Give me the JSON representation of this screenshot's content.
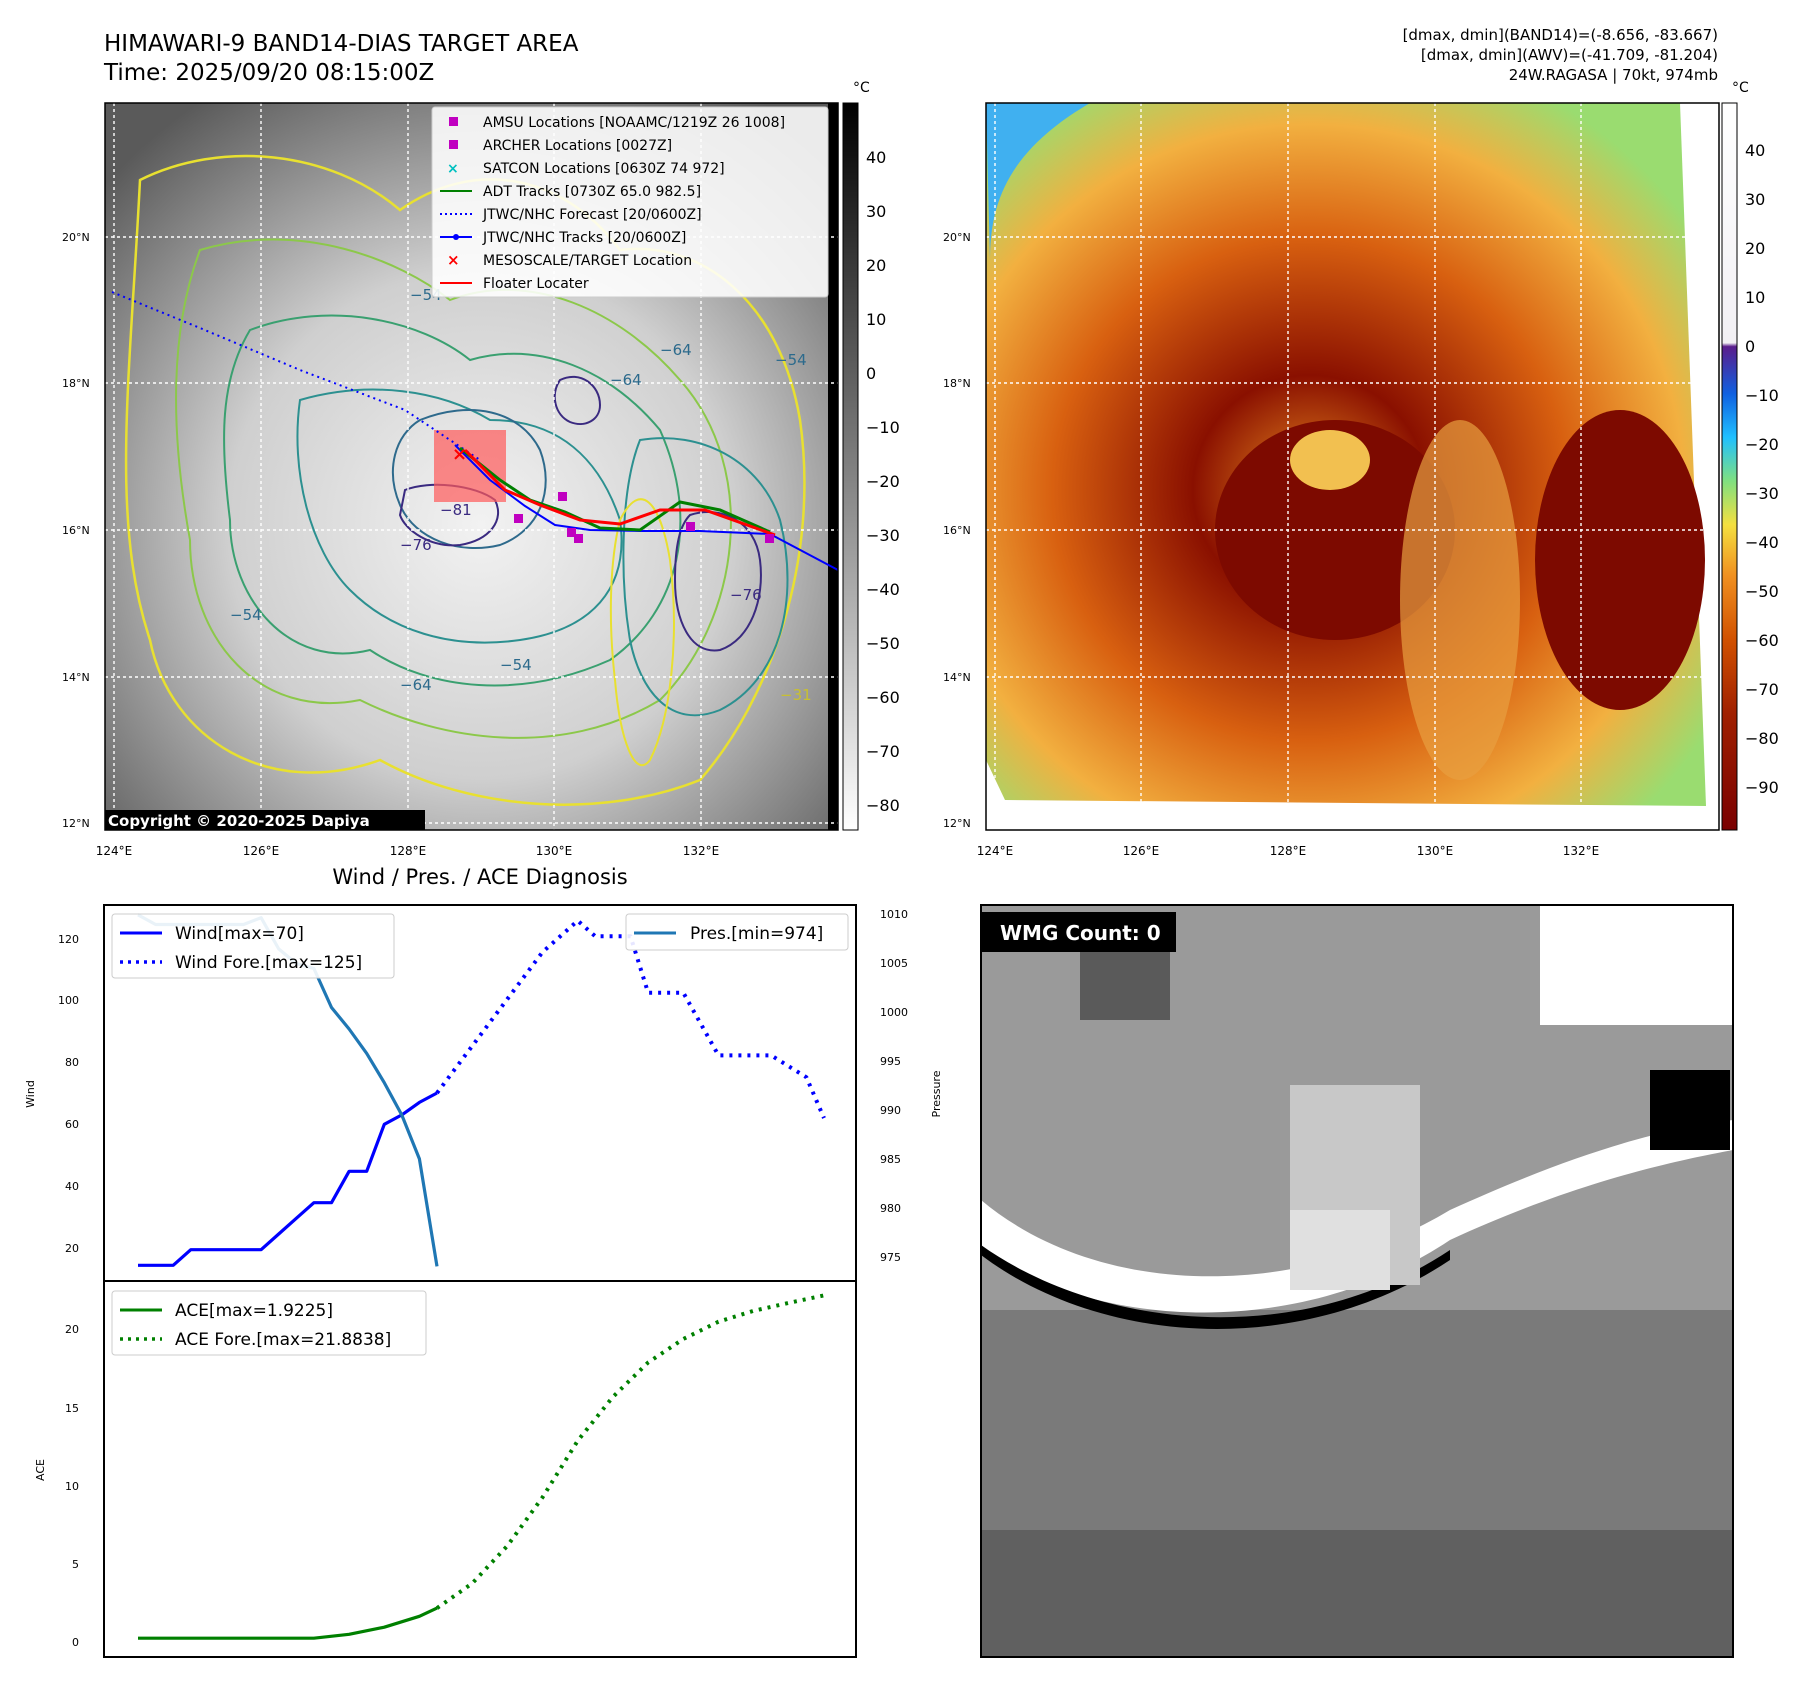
{
  "header": {
    "title_line1": "HIMAWARI-9 BAND14-DIAS TARGET AREA",
    "title_line2": "Time: 2025/09/20 08:15:00Z",
    "info_line1": "[dmax, dmin](BAND14)=(-8.656, -83.667)",
    "info_line2": "[dmax, dmin](AWV)=(-41.709, -81.204)",
    "info_line3": "24W.RAGASA | 70kt, 974mb"
  },
  "maps": {
    "lat_labels": [
      "20°N",
      "18°N",
      "16°N",
      "14°N",
      "12°N"
    ],
    "lon_labels": [
      "124°E",
      "126°E",
      "128°E",
      "130°E",
      "132°E"
    ],
    "copyright": "Copyright © 2020-2025 Dapiya",
    "colorbar_unit": "°C",
    "gray_ticks": [
      "40",
      "30",
      "20",
      "10",
      "0",
      "−10",
      "−20",
      "−30",
      "−40",
      "−50",
      "−60",
      "−70",
      "−80"
    ],
    "color_ticks": [
      "40",
      "30",
      "20",
      "10",
      "0",
      "−10",
      "−20",
      "−30",
      "−40",
      "−50",
      "−60",
      "−70",
      "−80",
      "−90"
    ],
    "contour_labels": [
      "−54",
      "−64",
      "−81",
      "−76",
      "−64",
      "−54",
      "−64",
      "−54",
      "−76",
      "−31",
      "−54"
    ],
    "legend": [
      {
        "label": "AMSU Locations [NOAAMC/1219Z 26 1008]",
        "color": "#c000c0",
        "marker": "square"
      },
      {
        "label": "ARCHER Locations [0027Z]",
        "color": "#c000c0",
        "marker": "square"
      },
      {
        "label": "SATCON Locations [0630Z 74 972]",
        "color": "#00c0c0",
        "marker": "x"
      },
      {
        "label": "ADT Tracks [0730Z 65.0 982.5]",
        "color": "#008000",
        "marker": "line"
      },
      {
        "label": "JTWC/NHC Forecast [20/0600Z]",
        "color": "#0000ff",
        "marker": "dotted"
      },
      {
        "label": "JTWC/NHC Tracks [20/0600Z]",
        "color": "#0000ff",
        "marker": "line-dot"
      },
      {
        "label": "MESOSCALE/TARGET Location",
        "color": "#ff0000",
        "marker": "x"
      },
      {
        "label": "Floater Locater",
        "color": "#ff0000",
        "marker": "line"
      }
    ]
  },
  "wmg": {
    "label": "WMG Count: 0"
  },
  "diag": {
    "title": "Wind / Pres. / ACE Diagnosis",
    "wind_ylabel": "Wind",
    "pres_ylabel": "Pressure",
    "ace_ylabel": "ACE",
    "wind_ticks": [
      "120",
      "100",
      "80",
      "60",
      "40",
      "20"
    ],
    "pres_ticks": [
      "1010",
      "1005",
      "1000",
      "995",
      "990",
      "985",
      "980",
      "975"
    ],
    "ace_ticks": [
      "20",
      "15",
      "10",
      "5",
      "0"
    ],
    "legend_wind": "Wind[max=70]",
    "legend_wind_fore": "Wind Fore.[max=125]",
    "legend_pres": "Pres.[min=974]",
    "legend_ace": "ACE[max=1.9225]",
    "legend_ace_fore": "ACE Fore.[max=21.8838]"
  },
  "chart_data": [
    {
      "type": "line",
      "title": "Wind / Pres. / ACE Diagnosis",
      "ylabel": "Wind",
      "ylim": [
        10,
        130
      ],
      "y2label": "Pressure",
      "y2lim": [
        972.5,
        1011
      ],
      "series": [
        {
          "name": "Wind[max=70]",
          "color": "#0000ff",
          "style": "solid",
          "x": [
            0,
            1,
            2,
            3,
            4,
            5,
            6,
            7,
            8,
            9,
            10,
            11,
            12,
            13,
            14,
            15,
            16,
            17
          ],
          "values": [
            15,
            15,
            15,
            20,
            20,
            20,
            20,
            20,
            25,
            30,
            35,
            35,
            45,
            45,
            60,
            63,
            67,
            70
          ]
        },
        {
          "name": "Wind Fore.[max=125]",
          "color": "#0000ff",
          "style": "dotted",
          "x": [
            17,
            19,
            21,
            23,
            25,
            26,
            28,
            29,
            31,
            33,
            35,
            36,
            38,
            39
          ],
          "values": [
            70,
            85,
            100,
            115,
            125,
            120,
            120,
            102,
            102,
            82,
            82,
            82,
            75,
            62
          ]
        },
        {
          "name": "Pres.[min=974]",
          "color": "#1f77b4",
          "style": "solid",
          "axis": "right",
          "x": [
            0,
            1,
            3,
            5,
            6,
            7,
            8,
            9,
            10,
            11,
            12,
            13,
            14,
            15,
            16,
            17
          ],
          "values": [
            1010,
            1009,
            1009,
            1009,
            1009,
            1009.7,
            1006.5,
            1005,
            1004.5,
            1000.5,
            998.3,
            995.8,
            992.8,
            989.5,
            985,
            974
          ]
        }
      ]
    },
    {
      "type": "line",
      "ylabel": "ACE",
      "ylim": [
        -1.2,
        22.8
      ],
      "series": [
        {
          "name": "ACE[max=1.9225]",
          "color": "#008000",
          "style": "solid",
          "x": [
            0,
            2,
            4,
            6,
            8,
            10,
            12,
            14,
            16,
            17
          ],
          "values": [
            0,
            0,
            0,
            0,
            0,
            0,
            0.25,
            0.7,
            1.4,
            1.9225
          ]
        },
        {
          "name": "ACE Fore.[max=21.8838]",
          "color": "#008000",
          "style": "dotted",
          "x": [
            17,
            19,
            21,
            23,
            25,
            27,
            29,
            31,
            33,
            35,
            37,
            39
          ],
          "values": [
            1.9225,
            3.5,
            5.9,
            9.0,
            12.6,
            15.4,
            17.6,
            19.1,
            20.2,
            20.9,
            21.4,
            21.8838
          ]
        }
      ]
    }
  ]
}
